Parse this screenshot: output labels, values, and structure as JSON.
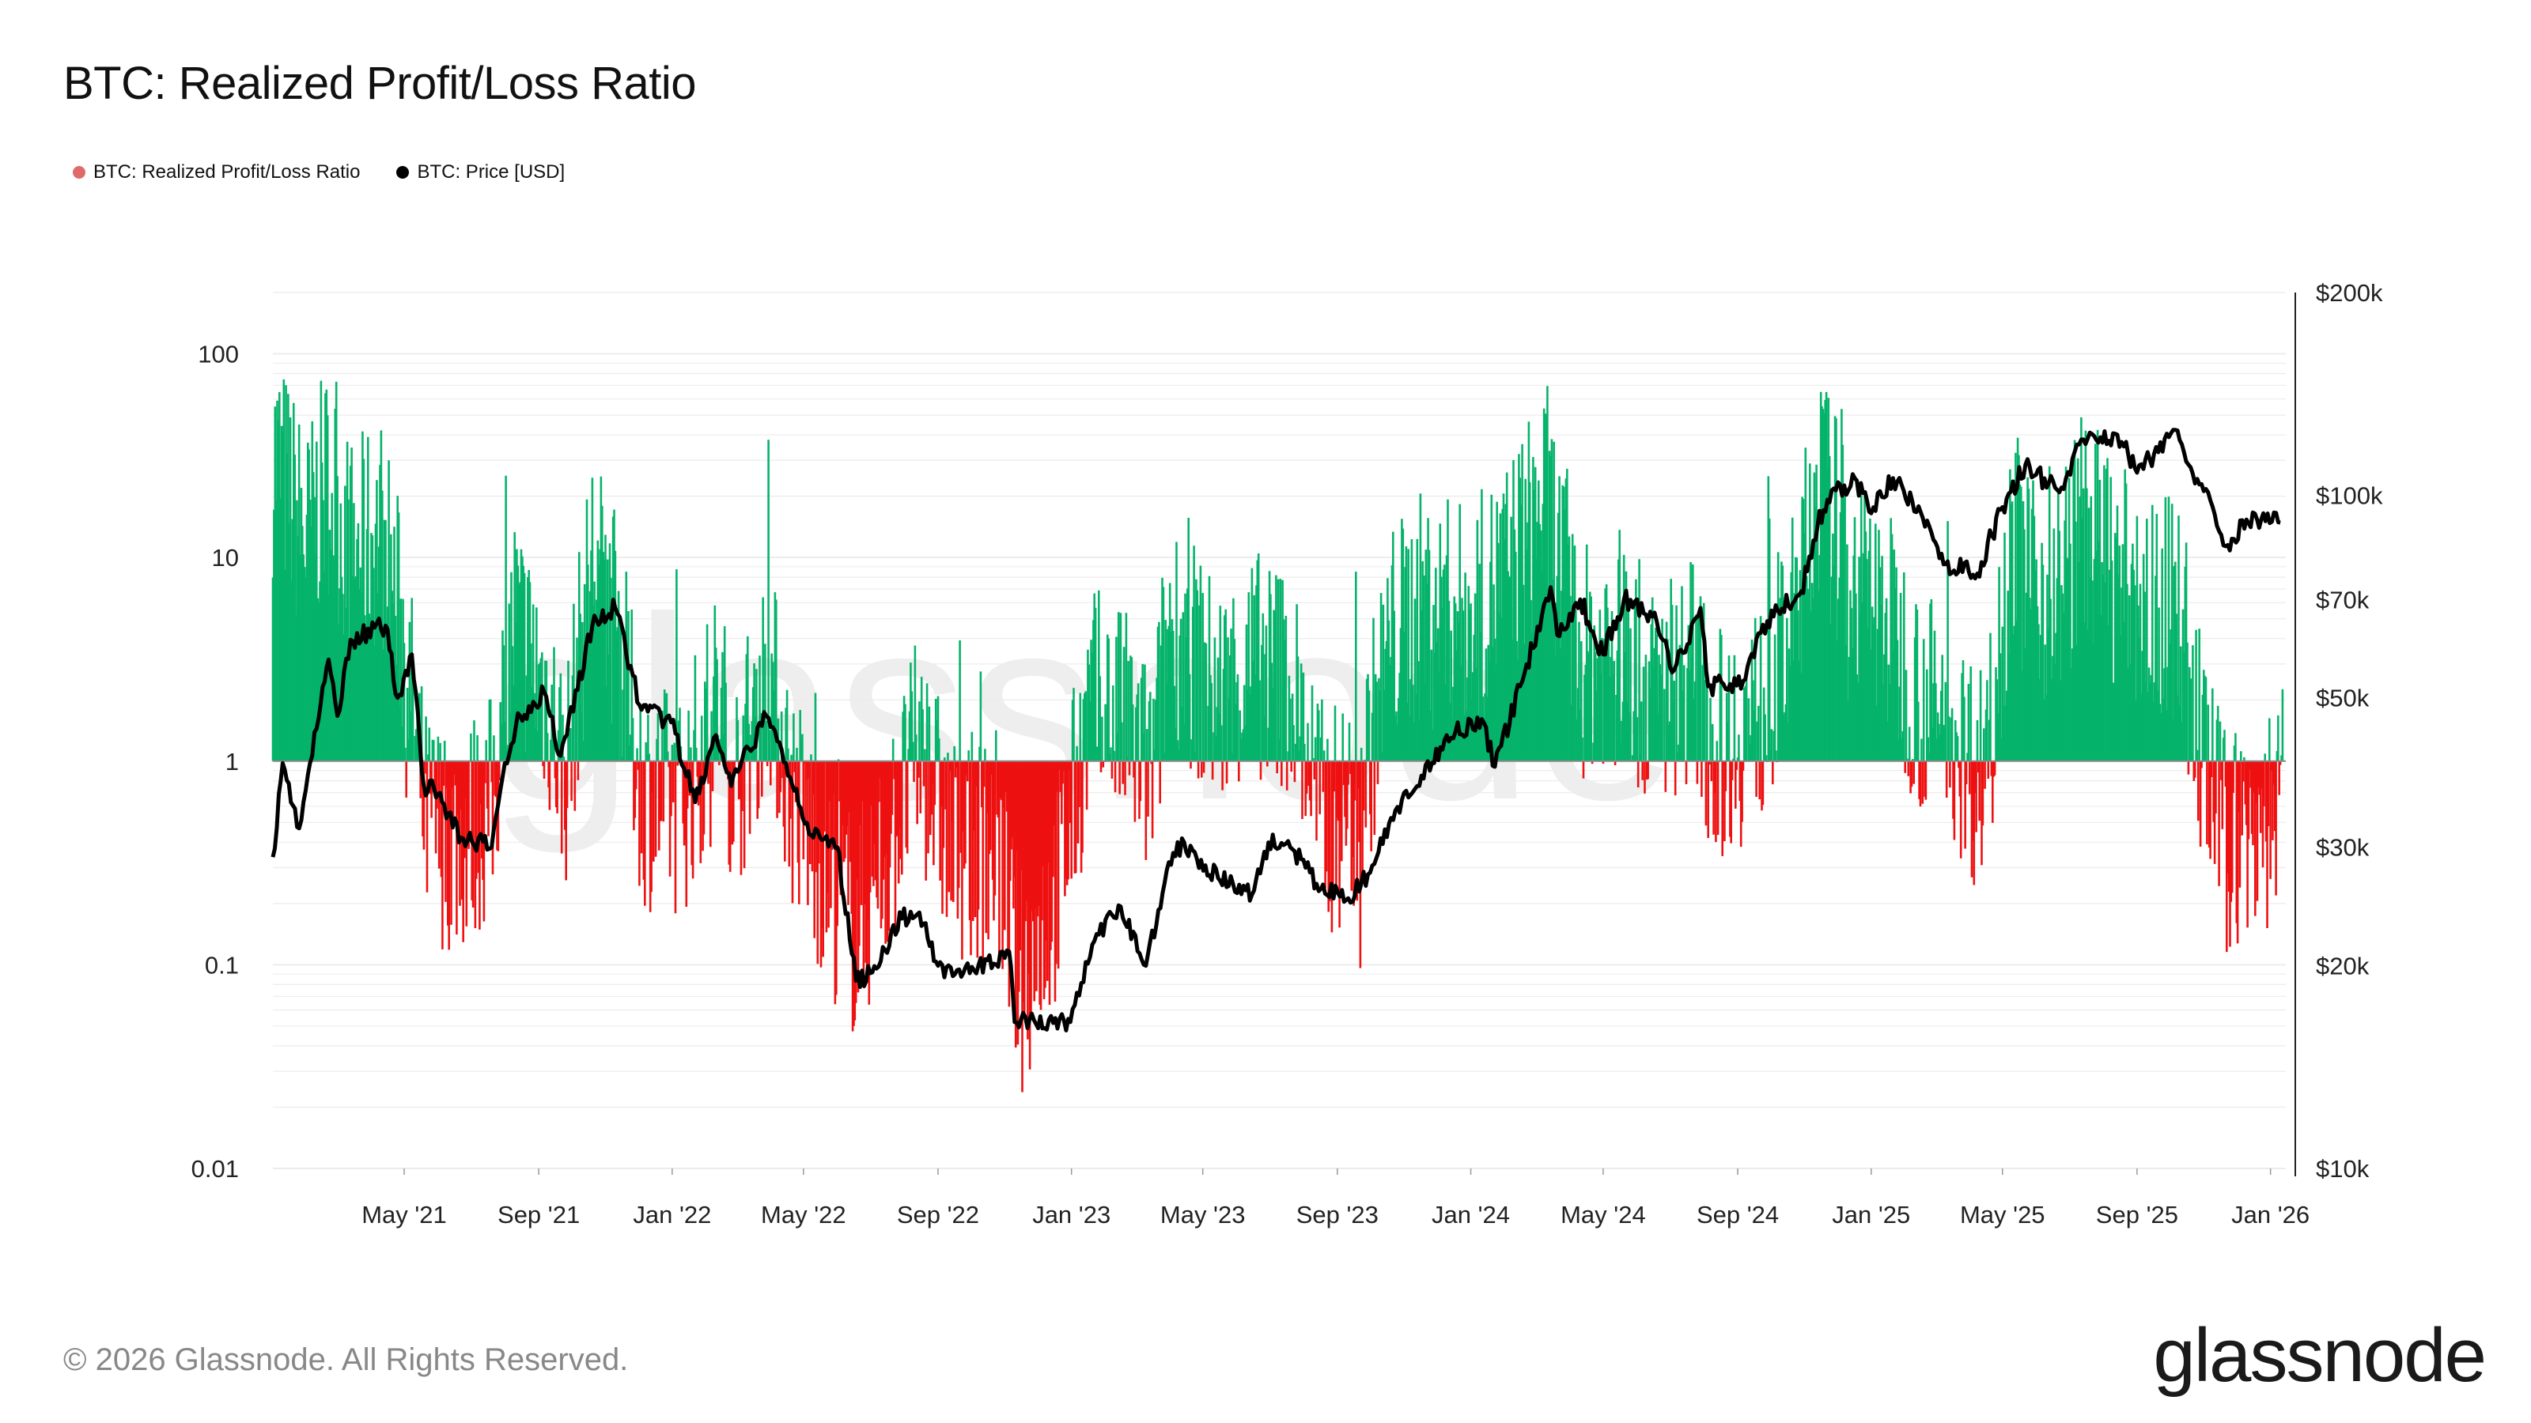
{
  "header": {
    "title": "BTC: Realized Profit/Loss Ratio"
  },
  "legend": [
    {
      "label": "BTC: Realized Profit/Loss Ratio",
      "color": "#e06a6a"
    },
    {
      "label": "BTC: Price [USD]",
      "color": "#000000"
    }
  ],
  "footer": {
    "copyright": "© 2026 Glassnode. All Rights Reserved.",
    "brand": "glassnode",
    "watermark": "glassnode"
  },
  "colors": {
    "profit": "#05b36a",
    "loss": "#ee1111",
    "price": "#000000",
    "grid": "#ececec",
    "baseline": "#8a8a8a"
  },
  "chart_data": {
    "type": "bar",
    "title": "BTC: Realized Profit/Loss Ratio",
    "x_range": [
      "2021-01-01",
      "2026-01-15"
    ],
    "x_ticks": [
      {
        "label": "May '21",
        "date": "2021-05-01"
      },
      {
        "label": "Sep '21",
        "date": "2021-09-01"
      },
      {
        "label": "Jan '22",
        "date": "2022-01-01"
      },
      {
        "label": "May '22",
        "date": "2022-05-01"
      },
      {
        "label": "Sep '22",
        "date": "2022-09-01"
      },
      {
        "label": "Jan '23",
        "date": "2023-01-01"
      },
      {
        "label": "May '23",
        "date": "2023-05-01"
      },
      {
        "label": "Sep '23",
        "date": "2023-09-01"
      },
      {
        "label": "Jan '24",
        "date": "2024-01-01"
      },
      {
        "label": "May '24",
        "date": "2024-05-01"
      },
      {
        "label": "Sep '24",
        "date": "2024-09-01"
      },
      {
        "label": "Jan '25",
        "date": "2025-01-01"
      },
      {
        "label": "May '25",
        "date": "2025-05-01"
      },
      {
        "label": "Sep '25",
        "date": "2025-09-01"
      },
      {
        "label": "Jan '26",
        "date": "2026-01-01"
      }
    ],
    "y_left": {
      "scale": "log",
      "range": [
        0.01,
        200
      ],
      "ticks": [
        {
          "label": "100",
          "value": 100
        },
        {
          "label": "10",
          "value": 10
        },
        {
          "label": "1",
          "value": 1
        },
        {
          "label": "0.1",
          "value": 0.1
        },
        {
          "label": "0.01",
          "value": 0.01
        }
      ],
      "baseline": 1
    },
    "y_right": {
      "scale": "log",
      "range": [
        10000,
        200000
      ],
      "ticks": [
        {
          "label": "$200k",
          "value": 200000
        },
        {
          "label": "$100k",
          "value": 100000
        },
        {
          "label": "$70k",
          "value": 70000
        },
        {
          "label": "$50k",
          "value": 50000
        },
        {
          "label": "$30k",
          "value": 30000
        },
        {
          "label": "$20k",
          "value": 20000
        },
        {
          "label": "$10k",
          "value": 10000
        }
      ]
    },
    "series": [
      {
        "name": "BTC: Realized Profit/Loss Ratio",
        "kind": "bar",
        "description_points": "daily ratio anchors; bars green above 1, red below 1",
        "anchors": [
          [
            "2021-01-05",
            30
          ],
          [
            "2021-02-01",
            12
          ],
          [
            "2021-02-20",
            25
          ],
          [
            "2021-03-15",
            10
          ],
          [
            "2021-04-10",
            14
          ],
          [
            "2021-05-01",
            4
          ],
          [
            "2021-05-20",
            0.5
          ],
          [
            "2021-06-20",
            0.4
          ],
          [
            "2021-07-20",
            0.6
          ],
          [
            "2021-08-10",
            5
          ],
          [
            "2021-09-10",
            2
          ],
          [
            "2021-09-25",
            0.8
          ],
          [
            "2021-10-20",
            10
          ],
          [
            "2021-11-10",
            5
          ],
          [
            "2021-12-05",
            0.7
          ],
          [
            "2022-01-10",
            0.6
          ],
          [
            "2022-02-10",
            2
          ],
          [
            "2022-03-01",
            0.8
          ],
          [
            "2022-03-30",
            3
          ],
          [
            "2022-04-20",
            0.7
          ],
          [
            "2022-05-15",
            0.35
          ],
          [
            "2022-06-18",
            0.15
          ],
          [
            "2022-07-20",
            0.4
          ],
          [
            "2022-08-15",
            1.2
          ],
          [
            "2022-09-15",
            0.35
          ],
          [
            "2022-10-25",
            0.4
          ],
          [
            "2022-11-15",
            0.08
          ],
          [
            "2022-12-20",
            0.25
          ],
          [
            "2023-01-20",
            2
          ],
          [
            "2023-02-20",
            1.5
          ],
          [
            "2023-03-15",
            0.8
          ],
          [
            "2023-04-01",
            5
          ],
          [
            "2023-05-15",
            2
          ],
          [
            "2023-06-20",
            3
          ],
          [
            "2023-07-20",
            2.5
          ],
          [
            "2023-08-20",
            0.5
          ],
          [
            "2023-09-20",
            0.6
          ],
          [
            "2023-10-20",
            4
          ],
          [
            "2023-11-20",
            6
          ],
          [
            "2024-01-01",
            5
          ],
          [
            "2024-02-01",
            8
          ],
          [
            "2024-03-10",
            20
          ],
          [
            "2024-04-10",
            3
          ],
          [
            "2024-05-15",
            4
          ],
          [
            "2024-06-15",
            2
          ],
          [
            "2024-07-20",
            3
          ],
          [
            "2024-08-10",
            1.2
          ],
          [
            "2024-09-15",
            1.5
          ],
          [
            "2024-10-20",
            4
          ],
          [
            "2024-11-15",
            25
          ],
          [
            "2024-12-15",
            8
          ],
          [
            "2025-01-15",
            5
          ],
          [
            "2025-02-15",
            2
          ],
          [
            "2025-03-15",
            1.5
          ],
          [
            "2025-04-10",
            0.8
          ],
          [
            "2025-05-10",
            12
          ],
          [
            "2025-06-15",
            6
          ],
          [
            "2025-07-15",
            15
          ],
          [
            "2025-08-15",
            8
          ],
          [
            "2025-09-15",
            5
          ],
          [
            "2025-10-10",
            6
          ],
          [
            "2025-10-25",
            1.5
          ],
          [
            "2025-11-20",
            0.4
          ],
          [
            "2025-12-20",
            0.5
          ],
          [
            "2026-01-10",
            0.6
          ]
        ]
      },
      {
        "name": "BTC: Price [USD]",
        "kind": "line",
        "points": [
          [
            "2021-01-01",
            29000
          ],
          [
            "2021-01-10",
            40000
          ],
          [
            "2021-01-25",
            32000
          ],
          [
            "2021-02-10",
            45000
          ],
          [
            "2021-02-21",
            57000
          ],
          [
            "2021-03-01",
            47000
          ],
          [
            "2021-03-13",
            61000
          ],
          [
            "2021-04-14",
            64000
          ],
          [
            "2021-04-25",
            50000
          ],
          [
            "2021-05-08",
            58000
          ],
          [
            "2021-05-19",
            37000
          ],
          [
            "2021-06-01",
            36000
          ],
          [
            "2021-06-22",
            31000
          ],
          [
            "2021-07-20",
            30000
          ],
          [
            "2021-08-01",
            40000
          ],
          [
            "2021-08-15",
            47000
          ],
          [
            "2021-09-06",
            51000
          ],
          [
            "2021-09-21",
            41000
          ],
          [
            "2021-10-20",
            64000
          ],
          [
            "2021-11-10",
            68000
          ],
          [
            "2021-11-26",
            54000
          ],
          [
            "2021-12-04",
            48000
          ],
          [
            "2021-12-31",
            46000
          ],
          [
            "2022-01-22",
            35000
          ],
          [
            "2022-02-10",
            44000
          ],
          [
            "2022-02-24",
            37000
          ],
          [
            "2022-03-28",
            47000
          ],
          [
            "2022-04-15",
            40000
          ],
          [
            "2022-05-10",
            31000
          ],
          [
            "2022-06-01",
            30000
          ],
          [
            "2022-06-18",
            19000
          ],
          [
            "2022-07-01",
            19500
          ],
          [
            "2022-07-30",
            23500
          ],
          [
            "2022-08-15",
            24000
          ],
          [
            "2022-09-01",
            20000
          ],
          [
            "2022-09-30",
            19500
          ],
          [
            "2022-11-05",
            21000
          ],
          [
            "2022-11-10",
            16500
          ],
          [
            "2022-12-31",
            16500
          ],
          [
            "2023-01-20",
            21500
          ],
          [
            "2023-02-15",
            24500
          ],
          [
            "2023-03-10",
            20000
          ],
          [
            "2023-03-31",
            28500
          ],
          [
            "2023-04-14",
            30500
          ],
          [
            "2023-05-15",
            27000
          ],
          [
            "2023-06-15",
            25500
          ],
          [
            "2023-06-30",
            30500
          ],
          [
            "2023-07-20",
            30000
          ],
          [
            "2023-08-17",
            26000
          ],
          [
            "2023-09-11",
            25200
          ],
          [
            "2023-10-01",
            27500
          ],
          [
            "2023-10-24",
            34000
          ],
          [
            "2023-11-15",
            37000
          ],
          [
            "2023-12-10",
            44000
          ],
          [
            "2024-01-11",
            46500
          ],
          [
            "2024-01-23",
            39500
          ],
          [
            "2024-02-15",
            52000
          ],
          [
            "2024-03-14",
            73000
          ],
          [
            "2024-03-20",
            62000
          ],
          [
            "2024-04-10",
            70000
          ],
          [
            "2024-05-01",
            58000
          ],
          [
            "2024-05-20",
            70000
          ],
          [
            "2024-06-15",
            66000
          ],
          [
            "2024-07-05",
            55000
          ],
          [
            "2024-07-29",
            68000
          ],
          [
            "2024-08-05",
            52000
          ],
          [
            "2024-09-06",
            53000
          ],
          [
            "2024-09-28",
            65000
          ],
          [
            "2024-10-29",
            72000
          ],
          [
            "2024-11-13",
            90000
          ],
          [
            "2024-11-22",
            98500
          ],
          [
            "2024-12-17",
            106000
          ],
          [
            "2025-01-01",
            94000
          ],
          [
            "2025-01-21",
            106000
          ],
          [
            "2025-02-25",
            88000
          ],
          [
            "2025-03-10",
            79000
          ],
          [
            "2025-04-08",
            76500
          ],
          [
            "2025-05-01",
            96000
          ],
          [
            "2025-05-22",
            111000
          ],
          [
            "2025-06-22",
            101000
          ],
          [
            "2025-07-14",
            121000
          ],
          [
            "2025-08-14",
            123000
          ],
          [
            "2025-09-01",
            108000
          ],
          [
            "2025-10-06",
            125000
          ],
          [
            "2025-10-20",
            110000
          ],
          [
            "2025-11-05",
            101000
          ],
          [
            "2025-11-21",
            84000
          ],
          [
            "2025-12-10",
            92000
          ],
          [
            "2026-01-10",
            91000
          ]
        ]
      }
    ]
  }
}
